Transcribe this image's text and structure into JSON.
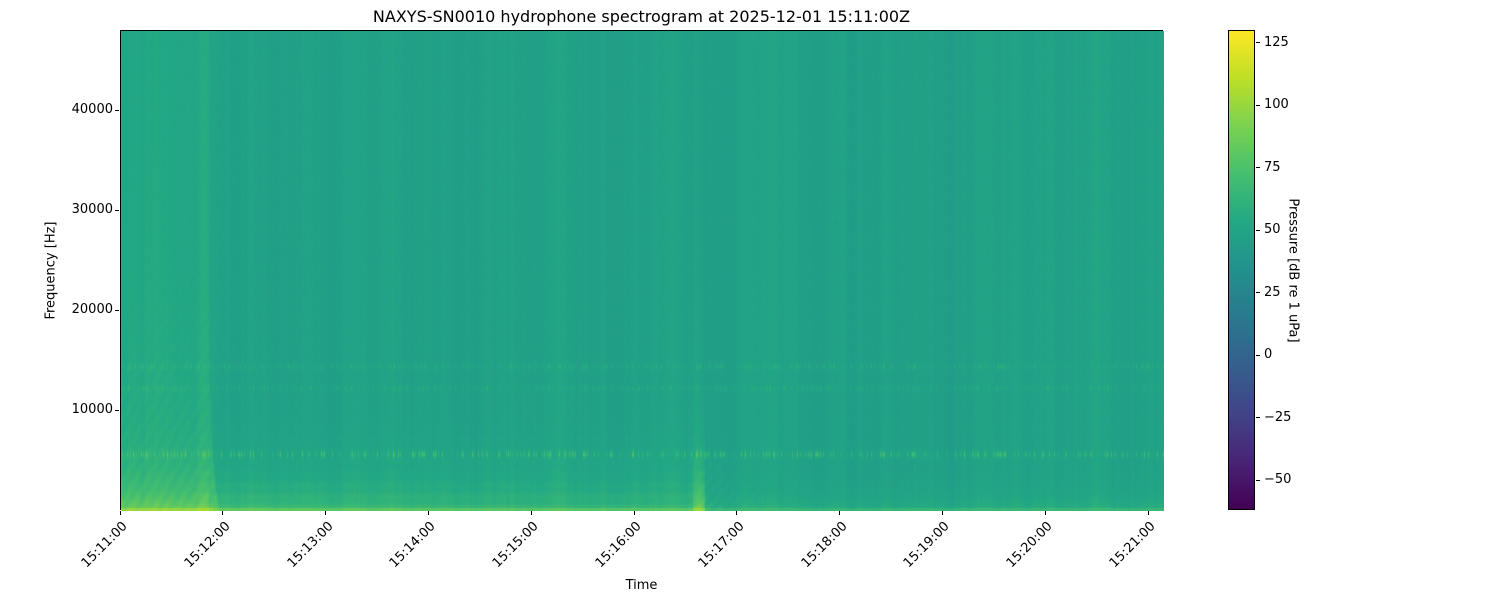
{
  "chart_data": {
    "type": "heatmap",
    "subtype": "spectrogram",
    "title": "NAXYS-SN0010 hydrophone spectrogram at 2025-12-01 15:11:00Z",
    "xlabel": "Time",
    "ylabel": "Frequency [Hz]",
    "x_ticks": [
      "15:11:00",
      "15:12:00",
      "15:13:00",
      "15:14:00",
      "15:15:00",
      "15:16:00",
      "15:17:00",
      "15:18:00",
      "15:19:00",
      "15:20:00",
      "15:21:00"
    ],
    "x_range": [
      "15:11:00",
      "15:21:08"
    ],
    "y_ticks": [
      {
        "value": 10000,
        "label": "10000"
      },
      {
        "value": 20000,
        "label": "20000"
      },
      {
        "value": 30000,
        "label": "30000"
      },
      {
        "value": 40000,
        "label": "40000"
      }
    ],
    "y_range_hz": [
      0,
      48000
    ],
    "grid": false,
    "colorbar": {
      "label": "Pressure [dB re 1 uPa]",
      "ticks": [
        {
          "value": 125,
          "label": "125"
        },
        {
          "value": 100,
          "label": "100"
        },
        {
          "value": 75,
          "label": "75"
        },
        {
          "value": 50,
          "label": "50"
        },
        {
          "value": 25,
          "label": "25"
        },
        {
          "value": 0,
          "label": "0"
        },
        {
          "value": -25,
          "label": "−25"
        },
        {
          "value": -50,
          "label": "−50"
        }
      ],
      "range_db": [
        -62,
        130
      ],
      "colormap": "viridis",
      "position": "right"
    },
    "background_level_db": 47.3,
    "features": [
      {
        "name": "startup-broadband-band",
        "time_span": [
          "15:11:00",
          "15:11:50"
        ],
        "extra_db": 4,
        "note": "lighter full-height band with diagonal low-frequency fan at left edge"
      },
      {
        "name": "low-frequency-noise-band",
        "freq_max_hz": 4500,
        "peak_db": 95,
        "note": "bright green band hugging 0 Hz, layered, fades after 15:16:30"
      },
      {
        "name": "tonal-speckle-band",
        "center_hz": 5700,
        "peak_db": 90,
        "note": "intermittent bright dashes across full duration"
      },
      {
        "name": "tonal-speckle-band",
        "center_hz": 14500,
        "peak_db": 72,
        "note": "faint intermittent dashes"
      },
      {
        "name": "tonal-speckle-band",
        "center_hz": 12300,
        "peak_db": 72,
        "note": "faint intermittent dashes"
      },
      {
        "name": "transient-chirp",
        "time": "15:16:30",
        "freq_max_hz": 8000,
        "note": "bright vertical streak with curved wake, after which low band dims"
      }
    ]
  },
  "colors": {
    "figure_background": "#ffffff",
    "frame": "#000000",
    "spectrogram_background": "#22a186",
    "viridis_stops": [
      "#440154",
      "#482475",
      "#414487",
      "#355f8d",
      "#2a788e",
      "#21918c",
      "#22a884",
      "#44bf70",
      "#7ad151",
      "#bddf26",
      "#fde725"
    ]
  }
}
